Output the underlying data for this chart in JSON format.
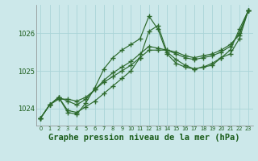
{
  "background_color": "#cce8ea",
  "grid_color": "#aad4d8",
  "line_color": "#2d6a2d",
  "xlabel": "Graphe pression niveau de la mer (hPa)",
  "xlabel_fontsize": 7.5,
  "ylabel_ticks": [
    1024,
    1025,
    1026
  ],
  "xlim": [
    -0.5,
    23.5
  ],
  "ylim": [
    1023.55,
    1026.75
  ],
  "xticks": [
    0,
    1,
    2,
    3,
    4,
    5,
    6,
    7,
    8,
    9,
    10,
    11,
    12,
    13,
    14,
    15,
    16,
    17,
    18,
    19,
    20,
    21,
    22,
    23
  ],
  "series": [
    {
      "x": [
        0,
        1,
        2,
        3,
        4,
        5,
        6,
        7,
        8,
        9,
        10,
        11,
        12,
        13,
        14,
        15,
        16,
        17,
        18,
        19,
        20,
        21,
        22,
        23
      ],
      "y": [
        1023.75,
        1024.1,
        1024.3,
        1023.9,
        1023.85,
        1024.15,
        1024.55,
        1025.05,
        1025.35,
        1025.55,
        1025.7,
        1025.85,
        1026.45,
        1026.1,
        1025.45,
        1025.2,
        1025.1,
        1025.05,
        1025.1,
        1025.15,
        1025.35,
        1025.45,
        1025.85,
        1026.6
      ]
    },
    {
      "x": [
        0,
        1,
        2,
        3,
        4,
        5,
        6,
        7,
        8,
        9,
        10,
        11,
        12,
        13,
        14,
        15,
        16,
        17,
        18,
        19,
        20,
        21,
        22,
        23
      ],
      "y": [
        1023.75,
        1024.1,
        1024.3,
        1024.2,
        1024.1,
        1024.25,
        1024.5,
        1024.75,
        1024.95,
        1025.1,
        1025.25,
        1025.45,
        1025.65,
        1025.6,
        1025.55,
        1025.45,
        1025.35,
        1025.3,
        1025.35,
        1025.4,
        1025.5,
        1025.65,
        1026.0,
        1026.6
      ]
    },
    {
      "x": [
        0,
        1,
        2,
        3,
        4,
        5,
        6,
        7,
        8,
        9,
        10,
        11,
        12,
        13,
        14,
        15,
        16,
        17,
        18,
        19,
        20,
        21,
        22,
        23
      ],
      "y": [
        1023.75,
        1024.1,
        1024.25,
        1024.25,
        1024.2,
        1024.3,
        1024.5,
        1024.7,
        1024.85,
        1025.0,
        1025.15,
        1025.35,
        1025.55,
        1025.55,
        1025.55,
        1025.5,
        1025.4,
        1025.35,
        1025.4,
        1025.45,
        1025.55,
        1025.7,
        1025.95,
        1026.6
      ]
    },
    {
      "x": [
        0,
        1,
        2,
        3,
        4,
        5,
        6,
        7,
        8,
        9,
        10,
        11,
        12,
        13,
        14,
        15,
        16,
        17,
        18,
        19,
        20,
        21,
        22,
        23
      ],
      "y": [
        1023.75,
        1024.1,
        1024.3,
        1023.95,
        1023.9,
        1024.05,
        1024.2,
        1024.4,
        1024.6,
        1024.8,
        1025.0,
        1025.35,
        1026.05,
        1026.2,
        1025.5,
        1025.3,
        1025.15,
        1025.05,
        1025.1,
        1025.2,
        1025.35,
        1025.55,
        1026.1,
        1026.6
      ]
    }
  ]
}
